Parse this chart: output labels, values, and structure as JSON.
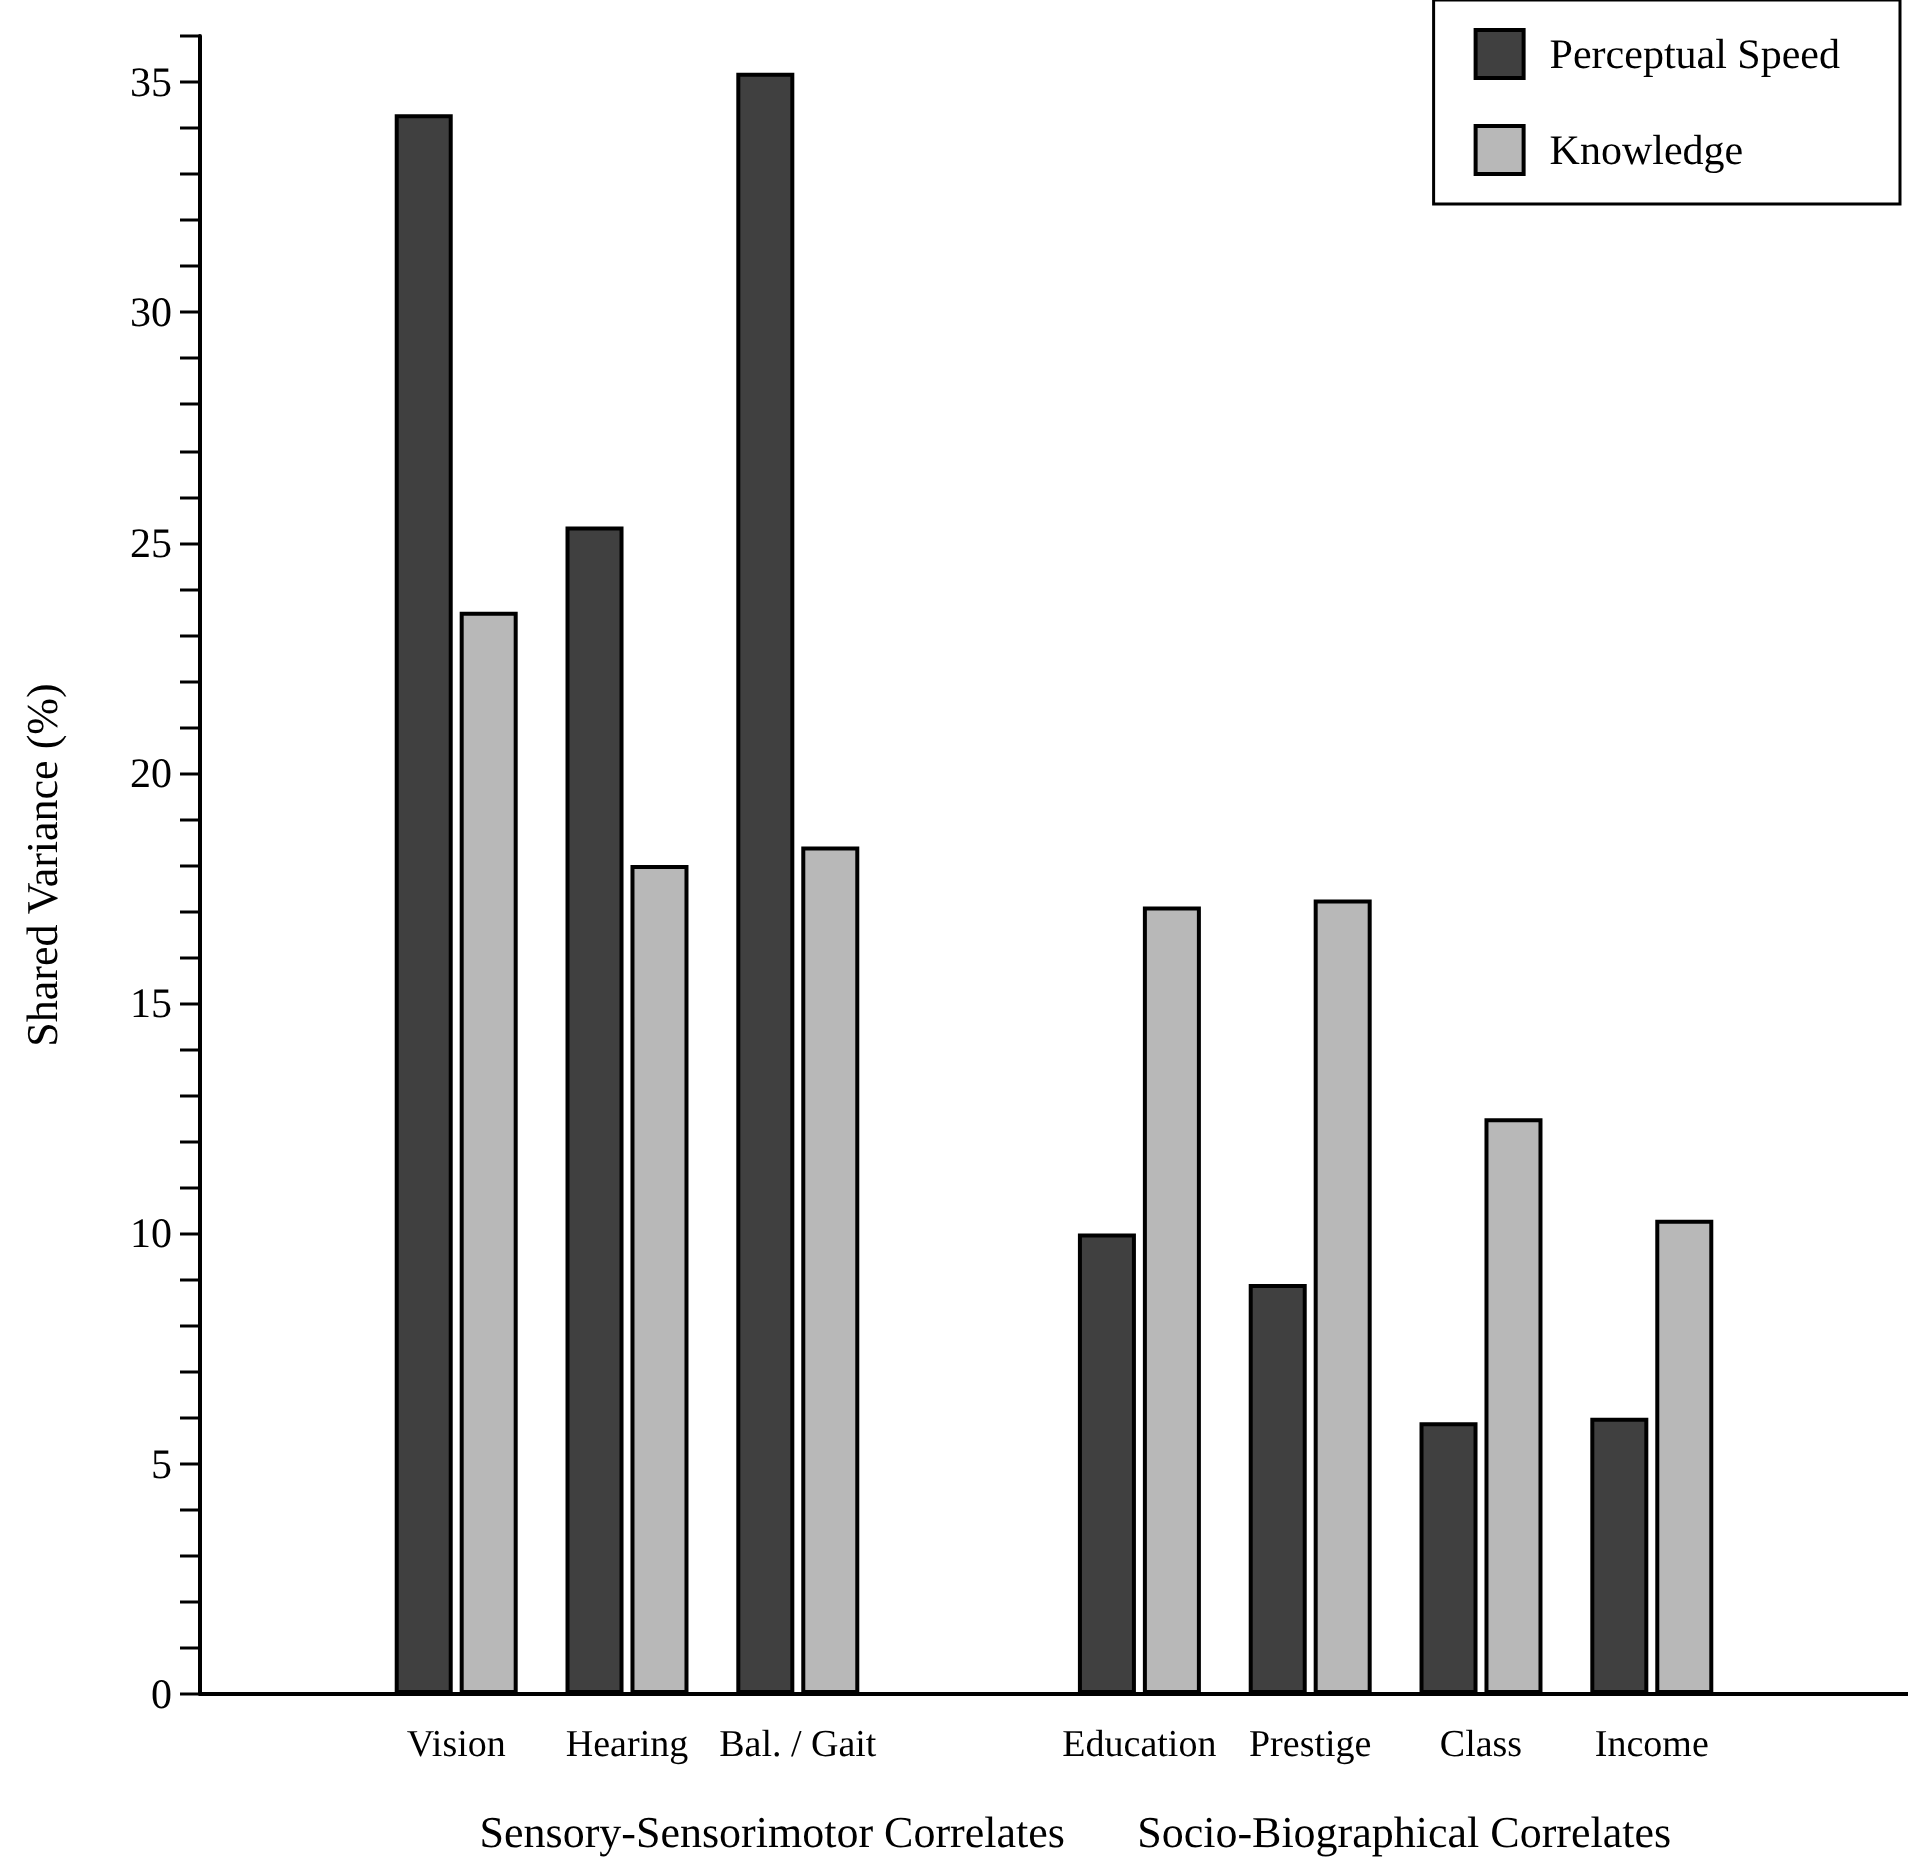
{
  "chart_data": {
    "type": "bar",
    "ylabel": "Shared Variance (%)",
    "categories": [
      null,
      "Vision",
      "Hearing",
      "Bal. / Gait",
      null,
      "Education",
      "Prestige",
      "Class",
      "Income",
      null
    ],
    "series": [
      {
        "name": "Perceptual Speed",
        "color": "#404040",
        "values": [
          null,
          34.3,
          25.35,
          35.2,
          null,
          10.0,
          8.9,
          5.9,
          6.0,
          null
        ]
      },
      {
        "name": "Knowledge",
        "color": "#b8b8b8",
        "values": [
          null,
          23.5,
          18.0,
          18.4,
          null,
          17.1,
          17.25,
          12.5,
          10.3,
          null
        ]
      }
    ],
    "ylim": [
      0,
      36
    ],
    "yticks": [
      0,
      {
        "value": 1,
        "label": null
      },
      {
        "value": 2,
        "label": null
      },
      {
        "value": 3,
        "label": null
      },
      {
        "value": 4,
        "label": null
      },
      5,
      {
        "value": 6,
        "label": null
      },
      {
        "value": 7,
        "label": null
      },
      {
        "value": 8,
        "label": null
      },
      {
        "value": 9,
        "label": null
      },
      10,
      {
        "value": 11,
        "label": null
      },
      {
        "value": 12,
        "label": null
      },
      {
        "value": 13,
        "label": null
      },
      {
        "value": 14,
        "label": null
      },
      15,
      {
        "value": 16,
        "label": null
      },
      {
        "value": 17,
        "label": null
      },
      {
        "value": 18,
        "label": null
      },
      {
        "value": 19,
        "label": null
      },
      20,
      {
        "value": 21,
        "label": null
      },
      {
        "value": 22,
        "label": null
      },
      {
        "value": 23,
        "label": null
      },
      {
        "value": 24,
        "label": null
      },
      25,
      {
        "value": 26,
        "label": null
      },
      {
        "value": 27,
        "label": null
      },
      {
        "value": 28,
        "label": null
      },
      {
        "value": 29,
        "label": null
      },
      30,
      {
        "value": 31,
        "label": null
      },
      {
        "value": 32,
        "label": null
      },
      {
        "value": 33,
        "label": null
      },
      {
        "value": 34,
        "label": null
      },
      35,
      {
        "value": 36,
        "label": null
      }
    ],
    "annotations": [
      "Sensory-Sensorimotor Correlates",
      "Socio-Biographical Correlates"
    ],
    "grid": false,
    "legend": "top right"
  }
}
